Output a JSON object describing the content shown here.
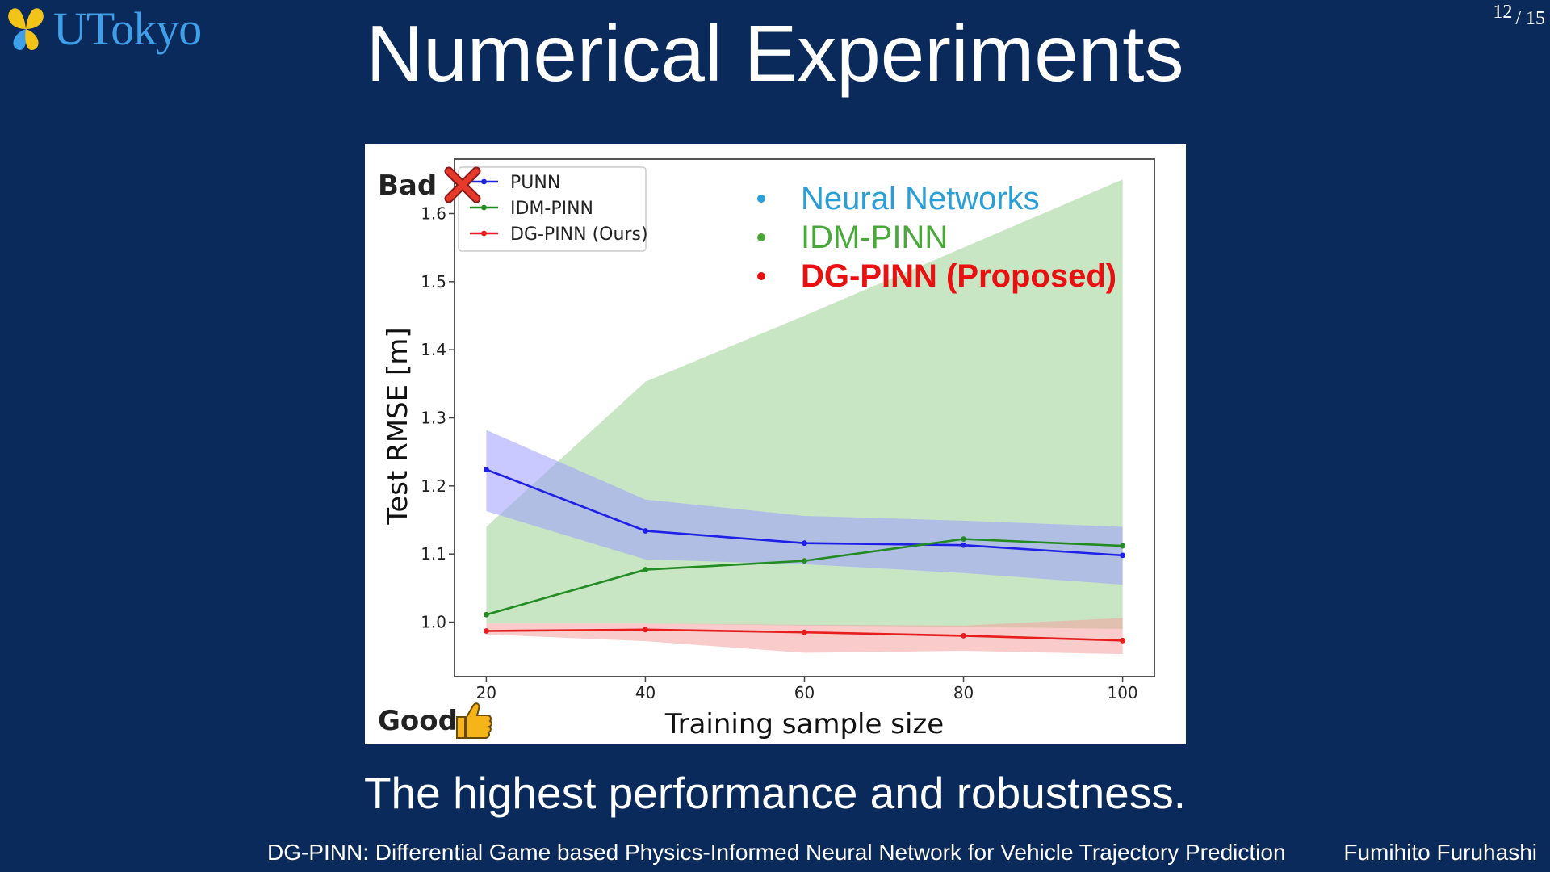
{
  "slide": {
    "logo_text": "UTokyo",
    "title": "Numerical Experiments",
    "page_current": "12",
    "page_total": "/ 15",
    "subtitle": "The highest performance and robustness.",
    "footer_left": "DG-PINN: Differential Game based Physics-Informed Neural Network for Vehicle Trajectory Prediction",
    "footer_right": "Fumihito Furuhashi"
  },
  "chart_data": {
    "type": "line",
    "xlabel": "Training sample size",
    "ylabel": "Test RMSE [m]",
    "x": [
      20,
      40,
      60,
      80,
      100
    ],
    "xlim": [
      16,
      104
    ],
    "ylim": [
      0.92,
      1.68
    ],
    "yticks": [
      1.0,
      1.1,
      1.2,
      1.3,
      1.4,
      1.5,
      1.6
    ],
    "ytick_labels": [
      "1.0",
      "1.1",
      "1.2",
      "1.3",
      "1.4",
      "1.5",
      "1.6"
    ],
    "xtick_labels": [
      "20",
      "40",
      "60",
      "80",
      "100"
    ],
    "legend_position": "top-left",
    "series": [
      {
        "name": "PUNN",
        "color": "#1f1fe6",
        "band_color": "#9c9cff",
        "values": [
          1.224,
          1.134,
          1.116,
          1.113,
          1.098
        ],
        "lower": [
          1.163,
          1.092,
          1.085,
          1.072,
          1.055
        ],
        "upper": [
          1.282,
          1.18,
          1.156,
          1.149,
          1.14
        ]
      },
      {
        "name": "IDM-PINN",
        "color": "#238b23",
        "band_color": "#a8d6a0",
        "values": [
          1.011,
          1.077,
          1.09,
          1.122,
          1.112
        ],
        "lower": [
          0.998,
          0.998,
          0.995,
          0.993,
          0.99
        ],
        "upper": [
          1.14,
          1.353,
          1.45,
          1.55,
          1.65
        ]
      },
      {
        "name": "DG-PINN (Ours)",
        "color": "#e61e1e",
        "band_color": "#f4a0a0",
        "values": [
          0.987,
          0.989,
          0.985,
          0.98,
          0.973
        ],
        "lower": [
          0.982,
          0.972,
          0.955,
          0.958,
          0.953
        ],
        "upper": [
          0.998,
          0.998,
          0.996,
          0.995,
          1.006
        ]
      }
    ],
    "annotations": {
      "bad": "Bad",
      "good": "Good",
      "nn": "Neural Networks",
      "idm": "IDM-PINN",
      "dg": "DG-PINN (Proposed)"
    }
  }
}
